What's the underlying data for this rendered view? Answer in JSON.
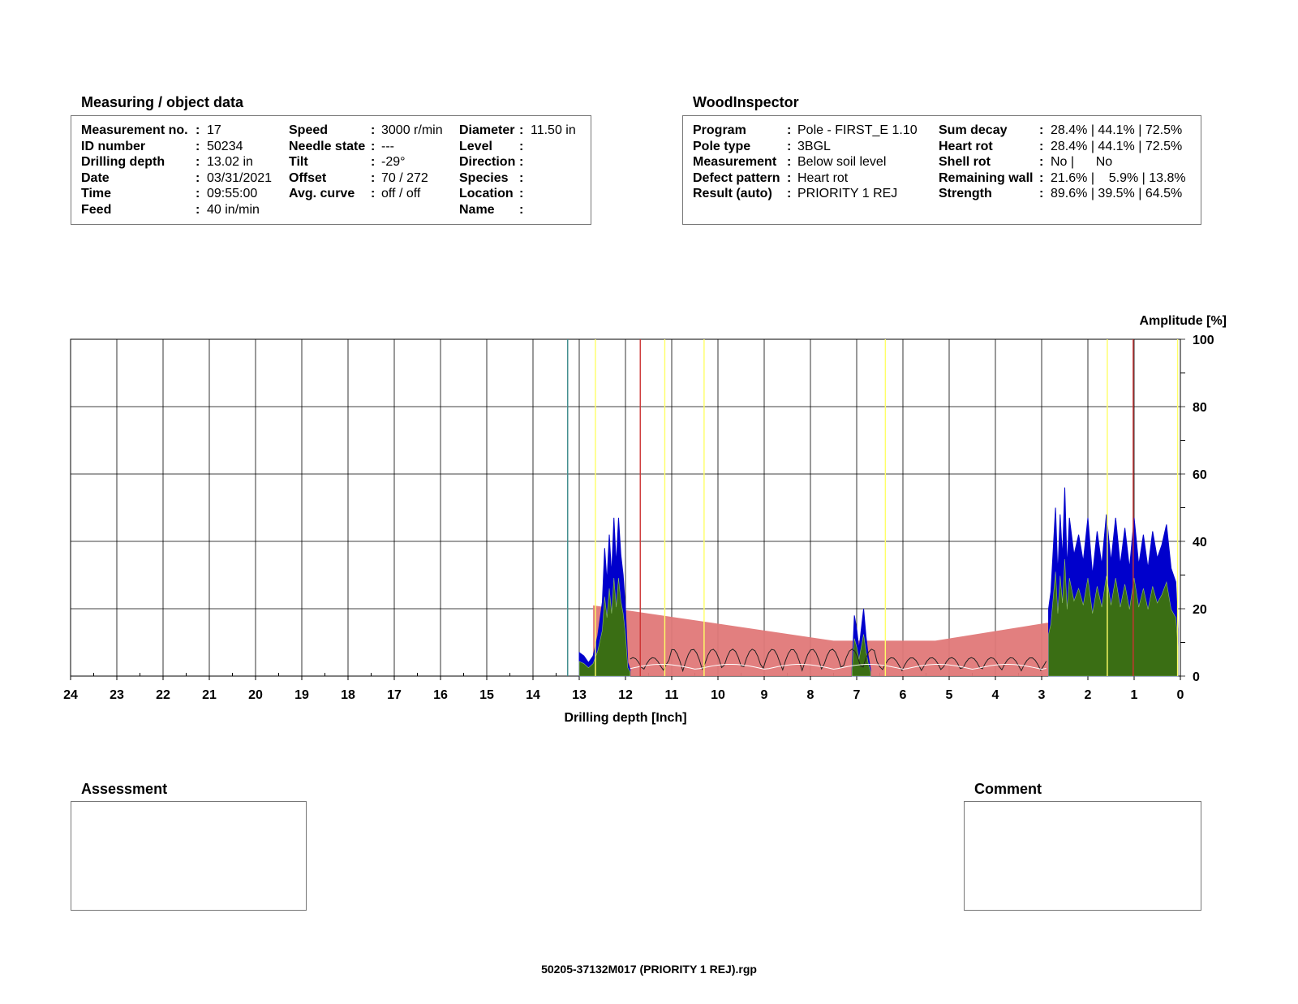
{
  "measuring": {
    "title": "Measuring / object data",
    "col1": [
      {
        "label": "Measurement no.",
        "colon": ":",
        "value": "17"
      },
      {
        "label": "ID number",
        "colon": ":",
        "value": "50234"
      },
      {
        "label": "Drilling depth",
        "colon": ":",
        "value": "13.02 in"
      },
      {
        "label": "Date",
        "colon": ":",
        "value": "03/31/2021"
      },
      {
        "label": "Time",
        "colon": ":",
        "value": "09:55:00"
      },
      {
        "label": "Feed",
        "colon": ":",
        "value": "40 in/min"
      }
    ],
    "col2": [
      {
        "label": "Speed",
        "colon": ":",
        "value": "3000 r/min"
      },
      {
        "label": "Needle state",
        "colon": ":",
        "value": "---"
      },
      {
        "label": "Tilt",
        "colon": ":",
        "value": "-29°"
      },
      {
        "label": "Offset",
        "colon": ":",
        "value": "70 / 272"
      },
      {
        "label": "Avg. curve",
        "colon": ":",
        "value": "off / off"
      }
    ],
    "col3": [
      {
        "label": "Diameter",
        "colon": ":",
        "value": "11.50 in"
      },
      {
        "label": "Level",
        "colon": ":",
        "value": ""
      },
      {
        "label": "Direction",
        "colon": ":",
        "value": ""
      },
      {
        "label": "Species",
        "colon": ":",
        "value": ""
      },
      {
        "label": "Location",
        "colon": ":",
        "value": ""
      },
      {
        "label": "Name",
        "colon": ":",
        "value": ""
      }
    ]
  },
  "woodinspector": {
    "title": "WoodInspector",
    "col1": [
      {
        "label": "Program",
        "colon": ":",
        "value": "Pole - FIRST_E 1.10"
      },
      {
        "label": "Pole type",
        "colon": ":",
        "value": "3BGL"
      },
      {
        "label": "Measurement",
        "colon": ":",
        "value": "Below soil level"
      },
      {
        "label": "Defect pattern",
        "colon": ":",
        "value": "Heart rot"
      },
      {
        "label": "Result (auto)",
        "colon": ":",
        "value": "PRIORITY 1 REJ"
      }
    ],
    "col2": [
      {
        "label": "Sum decay",
        "colon": ":",
        "value": "28.4% | 44.1% | 72.5%"
      },
      {
        "label": "Heart rot",
        "colon": ":",
        "value": "28.4% | 44.1% | 72.5%"
      },
      {
        "label": "Shell rot",
        "colon": ":",
        "value": "No |      No"
      },
      {
        "label": "Remaining wall",
        "colon": ":",
        "value": "21.6% |    5.9% | 13.8%"
      },
      {
        "label": "Strength",
        "colon": ":",
        "value": "89.6% | 39.5% | 64.5%"
      }
    ]
  },
  "assessment": {
    "title": "Assessment"
  },
  "comment": {
    "title": "Comment"
  },
  "footer": {
    "filename": "50205-37132M017 (PRIORITY 1 REJ).rgp"
  },
  "chart_data": {
    "type": "area",
    "xlabel": "Drilling depth [Inch]",
    "ylabel": "Amplitude [%]",
    "xlim": [
      24,
      0
    ],
    "ylim": [
      0,
      100
    ],
    "x_ticks": [
      24,
      23,
      22,
      21,
      20,
      19,
      18,
      17,
      16,
      15,
      14,
      13,
      12,
      11,
      10,
      9,
      8,
      7,
      6,
      5,
      4,
      3,
      2,
      1,
      0
    ],
    "y_ticks": [
      0,
      20,
      40,
      60,
      80,
      100
    ],
    "grid": true,
    "colors": {
      "feed": "#0000cc",
      "drill": "#3a6e14",
      "decay_zone": "#e07878",
      "avg": "#ffffff",
      "trace": "#222222",
      "marker_yellow": "#ffff66",
      "marker_red": "#cc3333",
      "marker_teal": "#3a8a8a"
    },
    "decay_zone": {
      "x": [
        12.7,
        11.95,
        7.5,
        5.3,
        2.8,
        0.3
      ],
      "y": [
        21,
        19.5,
        10.5,
        10.5,
        16,
        21
      ]
    },
    "vertical_markers": [
      {
        "x": 13.25,
        "color": "teal"
      },
      {
        "x": 12.65,
        "color": "yellow"
      },
      {
        "x": 11.68,
        "color": "red"
      },
      {
        "x": 11.15,
        "color": "yellow"
      },
      {
        "x": 10.3,
        "color": "yellow"
      },
      {
        "x": 6.38,
        "color": "yellow"
      },
      {
        "x": 1.58,
        "color": "yellow"
      },
      {
        "x": 1.02,
        "color": "red"
      },
      {
        "x": 0.06,
        "color": "yellow"
      }
    ],
    "series": [
      {
        "x": [
          13.0,
          12.9,
          12.8,
          12.7,
          12.6,
          12.5,
          12.45,
          12.4,
          12.35,
          12.3,
          12.25,
          12.2,
          12.15,
          12.1,
          12.05,
          12.0,
          11.95,
          11.9
        ],
        "y": [
          7,
          6,
          4,
          6,
          12,
          22,
          38,
          28,
          42,
          30,
          47,
          33,
          47,
          36,
          30,
          20,
          4,
          2
        ]
      },
      {
        "x": [
          7.1,
          7.05,
          7.0,
          6.95,
          6.9,
          6.85,
          6.8,
          6.75,
          6.7
        ],
        "y": [
          2,
          18,
          14,
          8,
          14,
          20,
          12,
          6,
          2
        ]
      },
      {
        "x": [
          2.85,
          2.8,
          2.7,
          2.65,
          2.6,
          2.55,
          2.5,
          2.45,
          2.4,
          2.3,
          2.2,
          2.1,
          2.0,
          1.9,
          1.8,
          1.7,
          1.6,
          1.5,
          1.4,
          1.3,
          1.2,
          1.1,
          1.0,
          0.9,
          0.8,
          0.7,
          0.6,
          0.5,
          0.4,
          0.3,
          0.2,
          0.1,
          0.05
        ],
        "y": [
          20,
          25,
          50,
          30,
          48,
          35,
          56,
          32,
          47,
          36,
          42,
          34,
          47,
          30,
          43,
          33,
          48,
          34,
          47,
          33,
          44,
          32,
          47,
          33,
          42,
          32,
          43,
          35,
          39,
          45,
          32,
          28,
          14
        ]
      }
    ]
  }
}
